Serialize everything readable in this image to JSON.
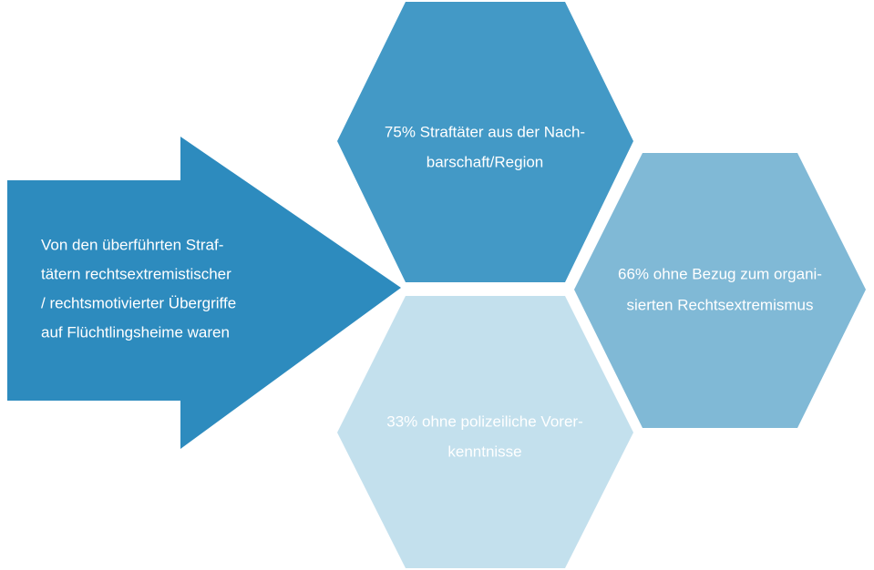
{
  "arrow": {
    "lines": [
      "Von den überführten Straf-",
      "tätern rechtsextremistischer",
      "/ rechtsmotivierter Übergriffe",
      "auf Flüchtlingsheime waren"
    ]
  },
  "hexagons": [
    {
      "lines": [
        "75% Straftäter aus der Nach-",
        "barschaft/Region"
      ]
    },
    {
      "lines": [
        "66% ohne Bezug zum organi-",
        "sierten Rechtsextremismus"
      ]
    },
    {
      "lines": [
        "33% ohne polizeiliche Vorer-",
        "kenntnisse"
      ]
    }
  ]
}
